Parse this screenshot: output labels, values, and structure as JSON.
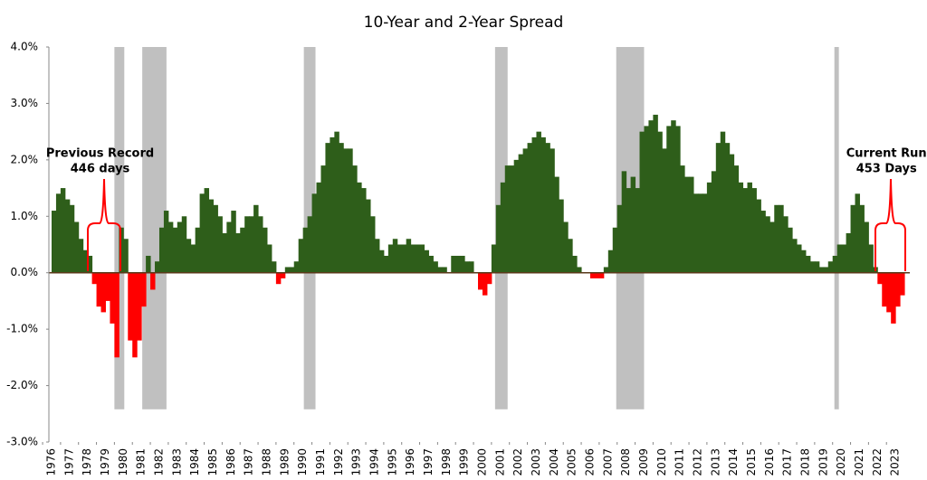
{
  "chart_data": {
    "type": "area",
    "title": "10-Year and 2-Year Spread",
    "x": [
      1976.5,
      1976.75,
      1977,
      1977.25,
      1977.5,
      1977.75,
      1978,
      1978.25,
      1978.5,
      1978.75,
      1979,
      1979.25,
      1979.5,
      1979.75,
      1980,
      1980.25,
      1980.5,
      1980.75,
      1981,
      1981.25,
      1981.5,
      1981.75,
      1982,
      1982.25,
      1982.5,
      1982.75,
      1983,
      1983.25,
      1983.5,
      1983.75,
      1984,
      1984.25,
      1984.5,
      1984.75,
      1985,
      1985.25,
      1985.5,
      1985.75,
      1986,
      1986.25,
      1986.5,
      1986.75,
      1987,
      1987.25,
      1987.5,
      1987.75,
      1988,
      1988.25,
      1988.5,
      1988.75,
      1989,
      1989.25,
      1989.5,
      1989.75,
      1990,
      1990.25,
      1990.5,
      1990.75,
      1991,
      1991.25,
      1991.5,
      1991.75,
      1992,
      1992.25,
      1992.5,
      1992.75,
      1993,
      1993.25,
      1993.5,
      1993.75,
      1994,
      1994.25,
      1994.5,
      1994.75,
      1995,
      1995.25,
      1995.5,
      1995.75,
      1996,
      1996.25,
      1996.5,
      1996.75,
      1997,
      1997.25,
      1997.5,
      1997.75,
      1998,
      1998.25,
      1998.5,
      1998.75,
      1999,
      1999.25,
      1999.5,
      1999.75,
      2000,
      2000.25,
      2000.5,
      2000.75,
      2001,
      2001.25,
      2001.5,
      2001.75,
      2002,
      2002.25,
      2002.5,
      2002.75,
      2003,
      2003.25,
      2003.5,
      2003.75,
      2004,
      2004.25,
      2004.5,
      2004.75,
      2005,
      2005.25,
      2005.5,
      2005.75,
      2006,
      2006.25,
      2006.5,
      2006.75,
      2007,
      2007.25,
      2007.5,
      2007.75,
      2008,
      2008.25,
      2008.5,
      2008.75,
      2009,
      2009.25,
      2009.5,
      2009.75,
      2010,
      2010.25,
      2010.5,
      2010.75,
      2011,
      2011.25,
      2011.5,
      2011.75,
      2012,
      2012.25,
      2012.5,
      2012.75,
      2013,
      2013.25,
      2013.5,
      2013.75,
      2014,
      2014.25,
      2014.5,
      2014.75,
      2015,
      2015.25,
      2015.5,
      2015.75,
      2016,
      2016.25,
      2016.5,
      2016.75,
      2017,
      2017.25,
      2017.5,
      2017.75,
      2018,
      2018.25,
      2018.5,
      2018.75,
      2019,
      2019.25,
      2019.5,
      2019.75,
      2020,
      2020.25,
      2020.5,
      2020.75,
      2021,
      2021.25,
      2021.5,
      2021.75,
      2022,
      2022.25,
      2022.5,
      2022.75,
      2023,
      2023.25,
      2023.5,
      2023.75
    ],
    "values": [
      1.1,
      1.4,
      1.5,
      1.3,
      1.2,
      0.9,
      0.6,
      0.4,
      0.3,
      -0.2,
      -0.6,
      -0.7,
      -0.5,
      -0.9,
      -1.5,
      0.8,
      0.6,
      -1.2,
      -1.5,
      -1.2,
      -0.6,
      0.3,
      -0.3,
      0.2,
      0.8,
      1.1,
      0.9,
      0.8,
      0.9,
      1.0,
      0.6,
      0.5,
      0.8,
      1.4,
      1.5,
      1.3,
      1.2,
      1.0,
      0.7,
      0.9,
      1.1,
      0.7,
      0.8,
      1.0,
      1.0,
      1.2,
      1.0,
      0.8,
      0.5,
      0.2,
      -0.2,
      -0.1,
      0.1,
      0.1,
      0.2,
      0.6,
      0.8,
      1.0,
      1.4,
      1.6,
      1.9,
      2.3,
      2.4,
      2.5,
      2.3,
      2.2,
      2.2,
      1.9,
      1.6,
      1.5,
      1.3,
      1.0,
      0.6,
      0.4,
      0.3,
      0.5,
      0.6,
      0.5,
      0.5,
      0.6,
      0.5,
      0.5,
      0.5,
      0.4,
      0.3,
      0.2,
      0.1,
      0.1,
      0.0,
      0.3,
      0.3,
      0.3,
      0.2,
      0.2,
      0.0,
      -0.3,
      -0.4,
      -0.2,
      0.5,
      1.2,
      1.6,
      1.9,
      1.9,
      2.0,
      2.1,
      2.2,
      2.3,
      2.4,
      2.5,
      2.4,
      2.3,
      2.2,
      1.7,
      1.3,
      0.9,
      0.6,
      0.3,
      0.1,
      0.0,
      0.0,
      -0.1,
      -0.1,
      -0.1,
      0.1,
      0.4,
      0.8,
      1.2,
      1.8,
      1.5,
      1.7,
      1.5,
      2.5,
      2.6,
      2.7,
      2.8,
      2.5,
      2.2,
      2.6,
      2.7,
      2.6,
      1.9,
      1.7,
      1.7,
      1.4,
      1.4,
      1.4,
      1.6,
      1.8,
      2.3,
      2.5,
      2.3,
      2.1,
      1.9,
      1.6,
      1.5,
      1.6,
      1.5,
      1.3,
      1.1,
      1.0,
      0.9,
      1.2,
      1.2,
      1.0,
      0.8,
      0.6,
      0.5,
      0.4,
      0.3,
      0.2,
      0.2,
      0.1,
      0.1,
      0.2,
      0.3,
      0.5,
      0.5,
      0.7,
      1.2,
      1.4,
      1.2,
      0.9,
      0.5,
      0.1,
      -0.2,
      -0.6,
      -0.7,
      -0.9,
      -0.6,
      -0.4
    ],
    "positive_color": "#2e5e1a",
    "negative_color": "#ff0000",
    "recession_color": "#bdbdbd",
    "recessions": [
      [
        1980.0,
        1980.55
      ],
      [
        1981.55,
        1982.9
      ],
      [
        1990.55,
        1991.2
      ],
      [
        2001.2,
        2001.9
      ],
      [
        2007.95,
        2009.5
      ],
      [
        2020.1,
        2020.35
      ]
    ],
    "xlim": [
      1976.35,
      2024.3
    ],
    "xticks": [
      1976,
      1977,
      1978,
      1979,
      1980,
      1981,
      1982,
      1983,
      1984,
      1985,
      1986,
      1987,
      1988,
      1989,
      1990,
      1991,
      1992,
      1993,
      1994,
      1995,
      1996,
      1997,
      1998,
      1999,
      2000,
      2001,
      2002,
      2003,
      2004,
      2005,
      2006,
      2007,
      2008,
      2009,
      2010,
      2011,
      2012,
      2013,
      2014,
      2015,
      2016,
      2017,
      2018,
      2019,
      2020,
      2021,
      2022,
      2023
    ],
    "ylim": [
      -3,
      4
    ],
    "yticks": [
      {
        "value": 4,
        "label": "4.0%"
      },
      {
        "value": 3,
        "label": "3.0%"
      },
      {
        "value": 2,
        "label": "2.0%"
      },
      {
        "value": 1,
        "label": "1.0%"
      },
      {
        "value": 0,
        "label": "0.0%"
      },
      {
        "value": -1,
        "label": "-1.0%"
      },
      {
        "value": -2,
        "label": "-2.0%"
      },
      {
        "value": -3,
        "label": "-3.0%"
      }
    ],
    "annotations": [
      {
        "lines": [
          "Previous Record",
          "446 days"
        ],
        "x": 1979.2
      },
      {
        "lines": [
          "Current Run",
          "453 Days"
        ],
        "x": 2023.0
      }
    ]
  }
}
